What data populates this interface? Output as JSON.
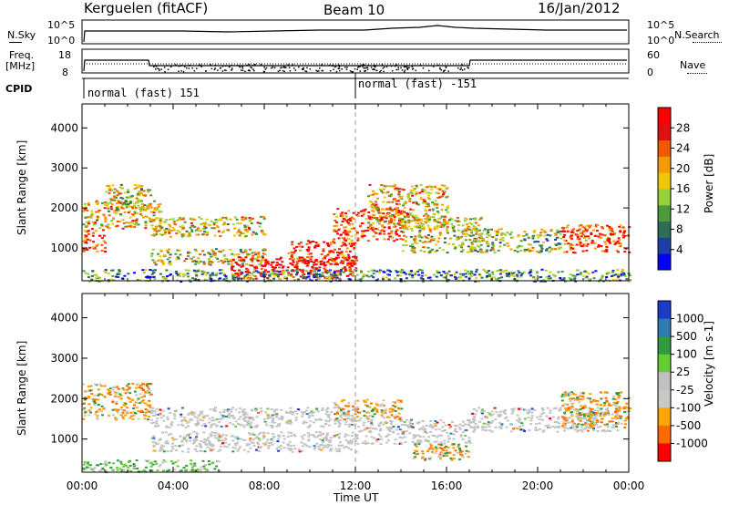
{
  "header": {
    "station": "Kerguelen (fitACF)",
    "beam": "Beam 10",
    "date": "16/Jan/2012"
  },
  "status_panels": {
    "nsky_label": "N.Sky",
    "nsearch_label": "N.Search",
    "freq_label_1": "Freq.",
    "freq_label_2": "[MHz]",
    "nave_label": "Nave",
    "cpid_label": "CPID",
    "noise_ticks_left": [
      "10^5",
      "10^0"
    ],
    "noise_ticks_right": [
      "10^5",
      "10^0"
    ],
    "freq_ticks": [
      "18",
      "8"
    ],
    "nave_ticks": [
      "60",
      "0"
    ],
    "cpid_segments": [
      {
        "label": "normal (fast) 151",
        "start_hour": 0,
        "end_hour": 12
      },
      {
        "label": "normal (fast) -151",
        "start_hour": 12,
        "end_hour": 24
      }
    ]
  },
  "chart_data": [
    {
      "type": "heatmap",
      "name": "power",
      "ylabel": "Slant Range [km]",
      "yticks": [
        1000,
        2000,
        3000,
        4000
      ],
      "ylim": [
        180,
        4600
      ],
      "xlim": [
        0,
        24
      ],
      "colorbar": {
        "label": "Power [dB]",
        "ticks": [
          "4",
          "8",
          "12",
          "16",
          "20",
          "24",
          "28"
        ],
        "colors": [
          "#0000ff",
          "#1c3fa8",
          "#2e6e57",
          "#4c9a3a",
          "#96d23c",
          "#f0c800",
          "#f59a00",
          "#f05a00",
          "#e01010",
          "#ff0000"
        ]
      },
      "echo_regions": [
        {
          "t0": 0.0,
          "t1": 3.5,
          "r0": 1500,
          "r1": 2200,
          "level": 0.6
        },
        {
          "t0": 0.0,
          "t1": 1.0,
          "r0": 900,
          "r1": 1500,
          "level": 0.8
        },
        {
          "t0": 1.0,
          "t1": 3.0,
          "r0": 1900,
          "r1": 2600,
          "level": 0.5
        },
        {
          "t0": 3.0,
          "t1": 8.0,
          "r0": 1300,
          "r1": 1800,
          "level": 0.55
        },
        {
          "t0": 3.0,
          "t1": 8.0,
          "r0": 600,
          "r1": 1000,
          "level": 0.5
        },
        {
          "t0": 6.5,
          "t1": 12.0,
          "r0": 250,
          "r1": 800,
          "level": 0.95
        },
        {
          "t0": 9.0,
          "t1": 12.0,
          "r0": 600,
          "r1": 1200,
          "level": 0.85
        },
        {
          "t0": 11.0,
          "t1": 14.0,
          "r0": 1200,
          "r1": 2000,
          "level": 0.85
        },
        {
          "t0": 12.5,
          "t1": 16.0,
          "r0": 1500,
          "r1": 2600,
          "level": 0.6
        },
        {
          "t0": 14.0,
          "t1": 17.5,
          "r0": 900,
          "r1": 1800,
          "level": 0.5
        },
        {
          "t0": 17.0,
          "t1": 21.0,
          "r0": 900,
          "r1": 1500,
          "level": 0.45
        },
        {
          "t0": 21.0,
          "t1": 24.0,
          "r0": 900,
          "r1": 1600,
          "level": 0.85
        },
        {
          "t0": 0.0,
          "t1": 24.0,
          "r0": 180,
          "r1": 480,
          "level": 0.3
        }
      ]
    },
    {
      "type": "heatmap",
      "name": "velocity",
      "ylabel": "Slant Range [km]",
      "yticks": [
        1000,
        2000,
        3000,
        4000
      ],
      "ylim": [
        180,
        4600
      ],
      "xlim": [
        0,
        24
      ],
      "xticks": [
        "00:00",
        "04:00",
        "08:00",
        "12:00",
        "16:00",
        "20:00",
        "00:00"
      ],
      "xlabel": "Time UT",
      "colorbar": {
        "label": "Velocity [m s-1]",
        "ticks": [
          "1000",
          "500",
          "100",
          "25",
          "-25",
          "-100",
          "-500",
          "-1000"
        ],
        "colors": [
          "#1a3cc8",
          "#2d7bb0",
          "#2f9a3e",
          "#66cc33",
          "#c0c0c0",
          "#c8c8c8",
          "#ffa500",
          "#ff6a00",
          "#ff0000"
        ]
      },
      "echo_regions": [
        {
          "t0": 0.0,
          "t1": 3.0,
          "r0": 1500,
          "r1": 2400,
          "kind": "neg"
        },
        {
          "t0": 3.0,
          "t1": 12.0,
          "r0": 1300,
          "r1": 1800,
          "kind": "ground"
        },
        {
          "t0": 3.0,
          "t1": 12.0,
          "r0": 700,
          "r1": 1200,
          "kind": "ground"
        },
        {
          "t0": 11.0,
          "t1": 14.0,
          "r0": 1500,
          "r1": 2000,
          "kind": "neg"
        },
        {
          "t0": 12.0,
          "t1": 17.0,
          "r0": 900,
          "r1": 1500,
          "kind": "ground"
        },
        {
          "t0": 14.5,
          "t1": 17.0,
          "r0": 500,
          "r1": 900,
          "kind": "neg"
        },
        {
          "t0": 17.0,
          "t1": 23.5,
          "r0": 1200,
          "r1": 1800,
          "kind": "ground"
        },
        {
          "t0": 0.0,
          "t1": 6.0,
          "r0": 200,
          "r1": 500,
          "kind": "pos"
        },
        {
          "t0": 21.0,
          "t1": 24.0,
          "r0": 1300,
          "r1": 2200,
          "kind": "neg"
        }
      ]
    }
  ]
}
